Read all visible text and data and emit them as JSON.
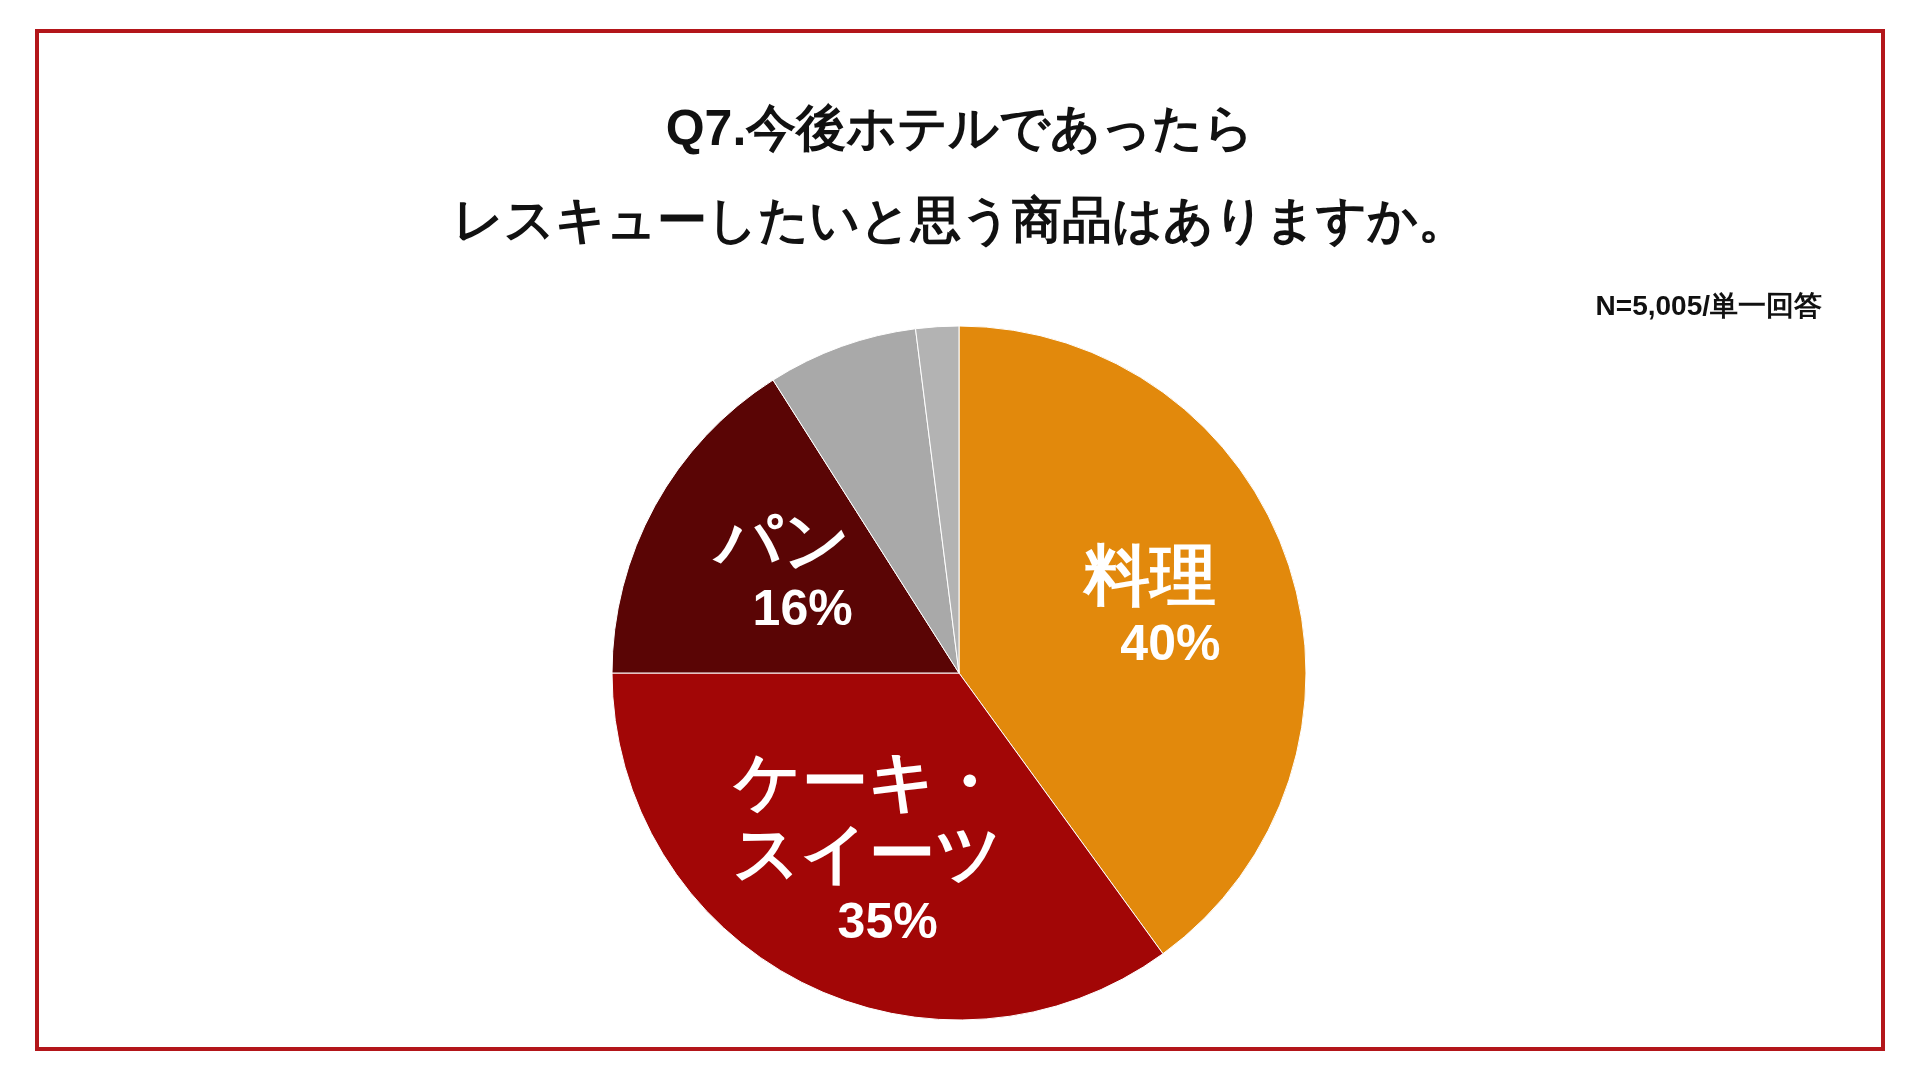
{
  "chart_data": {
    "type": "pie",
    "title": "Q7.今後ホテルであったら",
    "subtitle": "レスキューしたいと思う商品はありますか。",
    "categories": [
      "料理",
      "ケーキ・スイーツ",
      "パン",
      null,
      null
    ],
    "values": [
      40,
      35,
      16,
      7,
      2
    ],
    "value_labels": [
      "40%",
      "35%",
      "16%",
      null,
      null
    ],
    "colors": [
      "#e2890c",
      "#a20606",
      "#5a0505",
      "#a9a9a9",
      "#b3b3b3"
    ],
    "annotations": [
      "N=5,005/単一回答"
    ]
  }
}
